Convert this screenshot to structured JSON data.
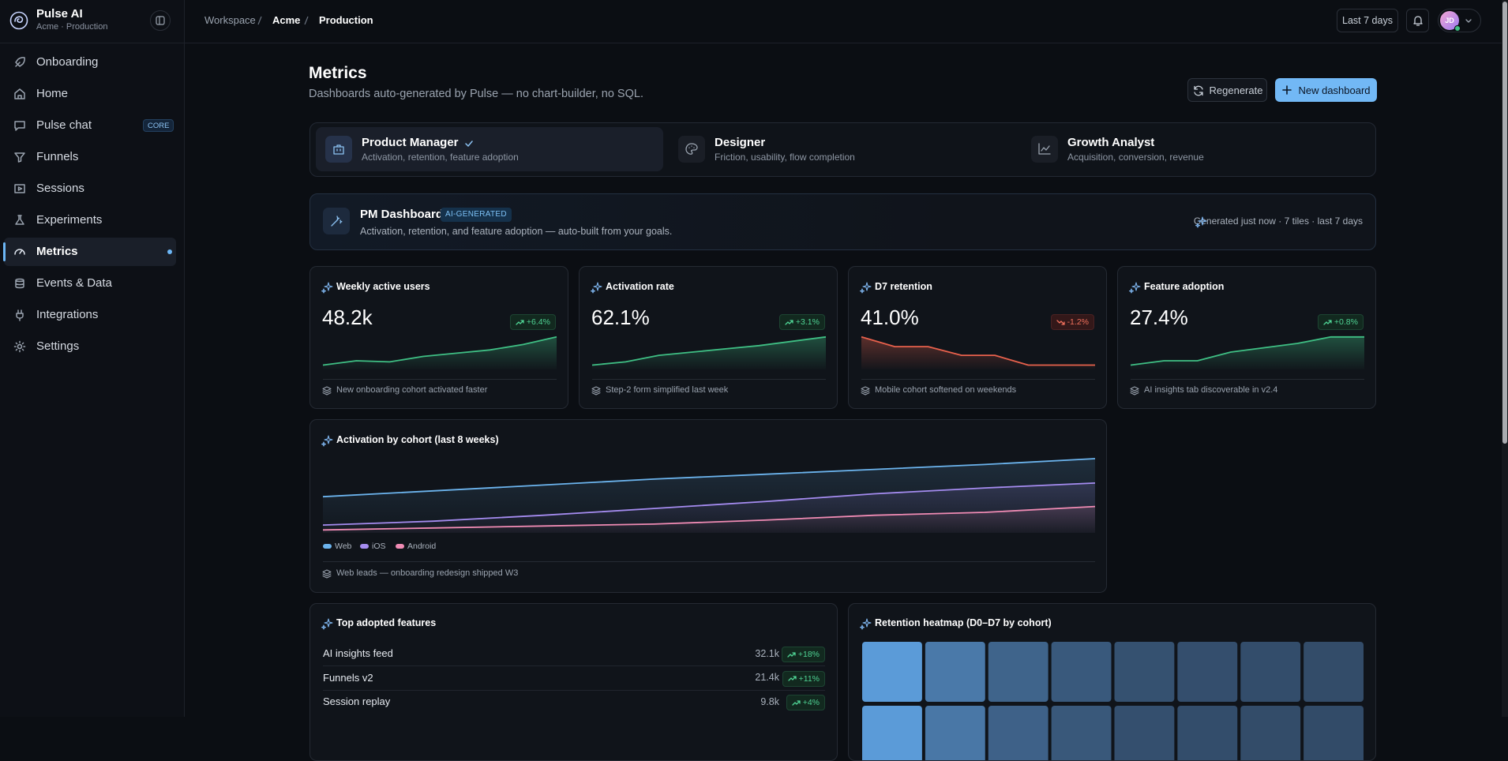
{
  "sidebar": {
    "brand": "Pulse AI",
    "workspace": "Acme · Production",
    "nav": [
      {
        "label": "Onboarding"
      },
      {
        "label": "Home"
      },
      {
        "label": "Pulse chat",
        "badge": "CORE"
      },
      {
        "label": "Funnels"
      },
      {
        "label": "Sessions"
      },
      {
        "label": "Experiments"
      },
      {
        "label": "Metrics",
        "active": true
      },
      {
        "label": "Events & Data"
      },
      {
        "label": "Integrations"
      },
      {
        "label": "Settings"
      }
    ]
  },
  "topbar": {
    "breadcrumb": [
      "Workspace",
      "Acme",
      "Production"
    ],
    "range": "Last 7 days",
    "avatar": "JD"
  },
  "page": {
    "title": "Metrics",
    "subtitle": "Dashboards auto-generated by Pulse — no chart-builder, no SQL.",
    "actions": [
      "Regenerate",
      "New dashboard"
    ]
  },
  "personas": [
    {
      "name": "Product Manager",
      "description": "Activation, retention, feature adoption",
      "selected": true
    },
    {
      "name": "Designer",
      "description": "Friction, usability, flow completion",
      "selected": false
    },
    {
      "name": "Growth Analyst",
      "description": "Acquisition, conversion, revenue",
      "selected": false
    }
  ],
  "dashboard": {
    "name": "PM Dashboard",
    "badge": "AI-GENERATED",
    "description": "Activation, retention, and feature adoption — auto-built from your goals.",
    "meta": "Generated just now · 7 tiles · last 7 days"
  },
  "tiles": [
    {
      "title": "Weekly active users",
      "value": "48.2k",
      "delta": "+6.4%",
      "direction": "up",
      "note": "New onboarding cohort activated faster",
      "chart_data": {
        "type": "area",
        "values": [
          4,
          8,
          7,
          12,
          15,
          18,
          23,
          30
        ],
        "ylim": [
          0,
          32
        ],
        "color": "#3fbf84"
      }
    },
    {
      "title": "Activation rate",
      "value": "62.1%",
      "delta": "+3.1%",
      "direction": "up",
      "note": "Step-2 form simplified last week",
      "chart_data": {
        "type": "area",
        "values": [
          4,
          7,
          13,
          16,
          19,
          22,
          26,
          30
        ],
        "ylim": [
          0,
          32
        ],
        "color": "#3fbf84"
      }
    },
    {
      "title": "D7 retention",
      "value": "41.0%",
      "delta": "-1.2%",
      "direction": "down",
      "note": "Mobile cohort softened on weekends",
      "chart_data": {
        "type": "area",
        "values": [
          30,
          21,
          21,
          13,
          13,
          4,
          4,
          4
        ],
        "ylim": [
          0,
          32
        ],
        "color": "#e8614c"
      }
    },
    {
      "title": "Feature adoption",
      "value": "27.4%",
      "delta": "+0.8%",
      "direction": "up",
      "note": "AI insights tab discoverable in v2.4",
      "chart_data": {
        "type": "area",
        "values": [
          4,
          8,
          8,
          16,
          20,
          24,
          30,
          30
        ],
        "ylim": [
          0,
          32
        ],
        "color": "#3fbf84"
      }
    }
  ],
  "cohort": {
    "title": "Activation by cohort (last 8 weeks)",
    "note": "Web leads — onboarding redesign shipped W3",
    "chart_data": {
      "type": "area",
      "ylim": [
        0,
        80
      ],
      "series": [
        {
          "name": "Web",
          "color": "#6cb4ee",
          "values": [
            37,
            43,
            49,
            55,
            60,
            65,
            70,
            76
          ]
        },
        {
          "name": "iOS",
          "color": "#a58cf0",
          "values": [
            8,
            12,
            18,
            25,
            32,
            40,
            46,
            51
          ]
        },
        {
          "name": "Android",
          "color": "#f08bb4",
          "values": [
            3,
            5,
            7,
            9,
            13,
            18,
            21,
            27
          ]
        }
      ]
    }
  },
  "features": {
    "title": "Top adopted features",
    "rows": [
      {
        "name": "AI insights feed",
        "count": "32.1k",
        "delta": "+18%"
      },
      {
        "name": "Funnels v2",
        "count": "21.4k",
        "delta": "+11%"
      },
      {
        "name": "Session replay",
        "count": "9.8k",
        "delta": "+4%"
      }
    ]
  },
  "heatmap": {
    "title": "Retention heatmap (D0–D7 by cohort)",
    "chart_data": {
      "type": "heatmap",
      "range": [
        20,
        100
      ],
      "colors": [
        "#2a3b52",
        "#5b9bd8"
      ],
      "values": [
        [
          100,
          72,
          54,
          45,
          38,
          36,
          35,
          34
        ],
        [
          100,
          70,
          52,
          44,
          37,
          35,
          34,
          33
        ]
      ]
    }
  }
}
